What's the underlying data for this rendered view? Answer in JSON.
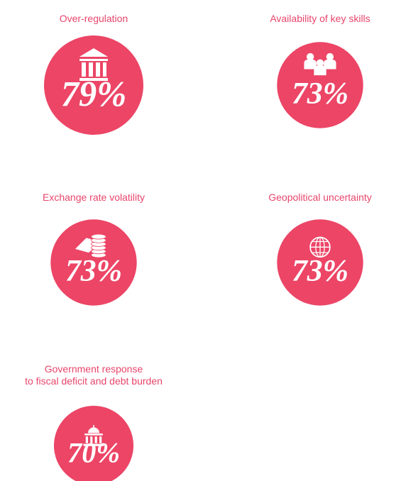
{
  "chart_data": {
    "type": "bubble",
    "categories": [
      "Over-regulation",
      "Availability of key skills",
      "Exchange rate volatility",
      "Geopolitical uncertainty",
      "Government response\nto fiscal deficit and debt burden"
    ],
    "values": [
      79,
      73,
      73,
      73,
      70
    ],
    "value_labels": [
      "79%",
      "73%",
      "73%",
      "73%",
      "70%"
    ],
    "color": "#ec4566"
  }
}
